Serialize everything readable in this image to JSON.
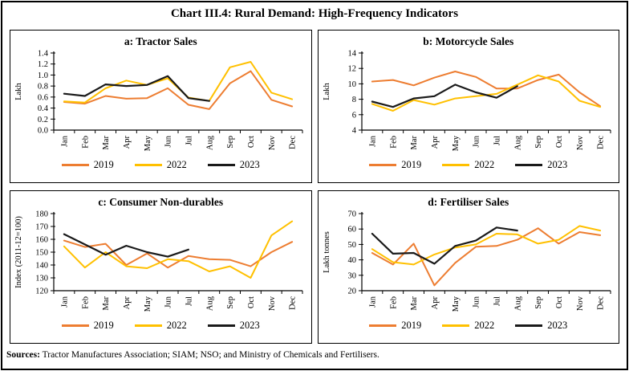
{
  "title": "Chart III.4: Rural Demand: High-Frequency Indicators",
  "footer": {
    "label": "Sources:",
    "text": " Tractor Manufactures Association; SIAM; NSO; and Ministry of Chemicals and Fertilisers."
  },
  "colors": {
    "2019": "#ED7D31",
    "2022": "#FFC000",
    "2023": "#1A1A1A"
  },
  "chart_data": [
    {
      "type": "line",
      "id": "a",
      "title": "a: Tractor Sales",
      "ylabel": "Lakh",
      "ylim": [
        0.0,
        1.4
      ],
      "ytick_step": 0.2,
      "ytick_decimals": 1,
      "grid": false,
      "legend_position": "bottom",
      "categories": [
        "Jan",
        "Feb",
        "Mar",
        "Apr",
        "May",
        "Jun",
        "Jul",
        "Aug",
        "Sep",
        "Oct",
        "Nov",
        "Dec"
      ],
      "series": [
        {
          "name": "2019",
          "color": "#ED7D31",
          "values": [
            0.51,
            0.48,
            0.62,
            0.57,
            0.58,
            0.76,
            0.46,
            0.38,
            0.85,
            1.07,
            0.55,
            0.43
          ]
        },
        {
          "name": "2022",
          "color": "#FFC000",
          "values": [
            0.52,
            0.5,
            0.76,
            0.9,
            0.82,
            0.94,
            0.59,
            0.53,
            1.14,
            1.24,
            0.68,
            0.56
          ]
        },
        {
          "name": "2023",
          "color": "#1A1A1A",
          "values": [
            0.66,
            0.62,
            0.83,
            0.8,
            0.82,
            0.98,
            0.58,
            0.53
          ]
        }
      ]
    },
    {
      "type": "line",
      "id": "b",
      "title": "b: Motorcycle Sales",
      "ylabel": "Lakh",
      "ylim": [
        4,
        14
      ],
      "ytick_step": 2,
      "ytick_decimals": 0,
      "grid": false,
      "legend_position": "bottom",
      "categories": [
        "Jan",
        "Feb",
        "Mar",
        "Apr",
        "May",
        "Jun",
        "Jul",
        "Aug",
        "Sep",
        "Oct",
        "Nov",
        "Dec"
      ],
      "series": [
        {
          "name": "2019",
          "color": "#ED7D31",
          "values": [
            10.3,
            10.5,
            9.8,
            10.8,
            11.6,
            10.9,
            9.4,
            9.4,
            10.5,
            11.2,
            8.9,
            7.1
          ]
        },
        {
          "name": "2022",
          "color": "#FFC000",
          "values": [
            7.4,
            6.5,
            7.9,
            7.3,
            8.1,
            8.4,
            8.7,
            9.9,
            11.1,
            10.3,
            7.8,
            7.0
          ]
        },
        {
          "name": "2023",
          "color": "#1A1A1A",
          "values": [
            7.7,
            7.0,
            8.1,
            8.4,
            9.9,
            8.9,
            8.2,
            9.7
          ]
        }
      ]
    },
    {
      "type": "line",
      "id": "c",
      "title": "c: Consumer Non-durables",
      "ylabel": "Index (2011-12=100)",
      "ylim": [
        120,
        180
      ],
      "ytick_step": 10,
      "ytick_decimals": 0,
      "grid": false,
      "legend_position": "bottom",
      "categories": [
        "Jan",
        "Feb",
        "Mar",
        "Apr",
        "May",
        "Jun",
        "Jul",
        "Aug",
        "Sep",
        "Oct",
        "Nov",
        "Dec"
      ],
      "series": [
        {
          "name": "2019",
          "color": "#ED7D31",
          "values": [
            159,
            154,
            156.5,
            140,
            149,
            138,
            147,
            144.5,
            144,
            139,
            150,
            158
          ]
        },
        {
          "name": "2022",
          "color": "#FFC000",
          "values": [
            154.5,
            138,
            150,
            139,
            137.5,
            144.5,
            143,
            135,
            139,
            130,
            163,
            174
          ]
        },
        {
          "name": "2023",
          "color": "#1A1A1A",
          "values": [
            164,
            156,
            148,
            155,
            150,
            146.5,
            152
          ]
        }
      ]
    },
    {
      "type": "line",
      "id": "d",
      "title": "d: Fertiliser Sales",
      "ylabel": "Lakh tonnes",
      "ylim": [
        20,
        70
      ],
      "ytick_step": 10,
      "ytick_decimals": 0,
      "grid": false,
      "legend_position": "bottom",
      "categories": [
        "Jan",
        "Feb",
        "Mar",
        "Apr",
        "May",
        "Jun",
        "Jul",
        "Aug",
        "Sep",
        "Oct",
        "Nov",
        "Dec"
      ],
      "series": [
        {
          "name": "2019",
          "color": "#ED7D31",
          "values": [
            44.5,
            37,
            50.5,
            23.5,
            38,
            48.5,
            49,
            53,
            60.5,
            50.5,
            58,
            56
          ]
        },
        {
          "name": "2022",
          "color": "#FFC000",
          "values": [
            47,
            38.5,
            37,
            43.5,
            48,
            50,
            57,
            56.5,
            50.5,
            53,
            62,
            59
          ]
        },
        {
          "name": "2023",
          "color": "#1A1A1A",
          "values": [
            57,
            44,
            44.5,
            37.5,
            49,
            52.5,
            61,
            59
          ]
        }
      ]
    }
  ]
}
